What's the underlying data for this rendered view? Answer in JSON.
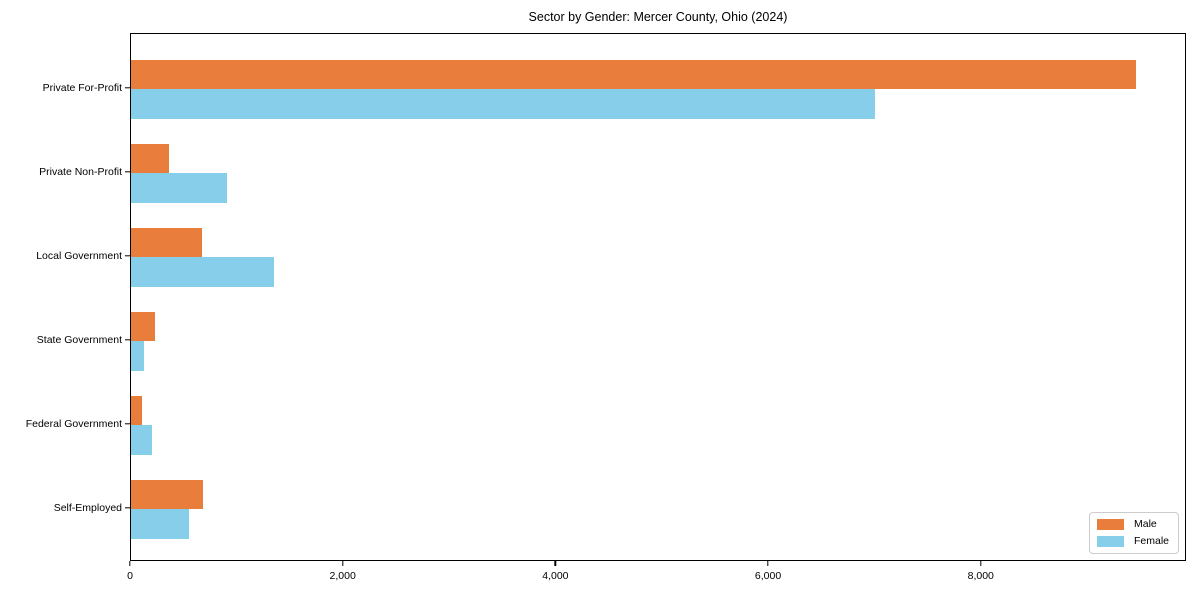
{
  "title": "Sector by Gender: Mercer County, Ohio (2024)",
  "chart_data": {
    "type": "bar",
    "orientation": "horizontal",
    "title": "Sector by Gender: Mercer County, Ohio (2024)",
    "categories": [
      "Private For-Profit",
      "Private Non-Profit",
      "Local Government",
      "State Government",
      "Federal Government",
      "Self-Employed"
    ],
    "series": [
      {
        "name": "Male",
        "color": "#e87d3c",
        "values": [
          9450,
          360,
          665,
          225,
          100,
          680
        ]
      },
      {
        "name": "Female",
        "color": "#87ceeb",
        "values": [
          7000,
          900,
          1340,
          120,
          195,
          545
        ]
      }
    ],
    "xlabel": "",
    "ylabel": "",
    "xlim": [
      0,
      9930
    ],
    "xticks": [
      0,
      2000,
      4000,
      6000,
      8000
    ],
    "xtick_labels": [
      "0",
      "2,000",
      "4,000",
      "6,000",
      "8,000"
    ],
    "grid": false,
    "legend_position": "lower right",
    "background_color": "#ffffff",
    "axis_color": "#000000"
  }
}
